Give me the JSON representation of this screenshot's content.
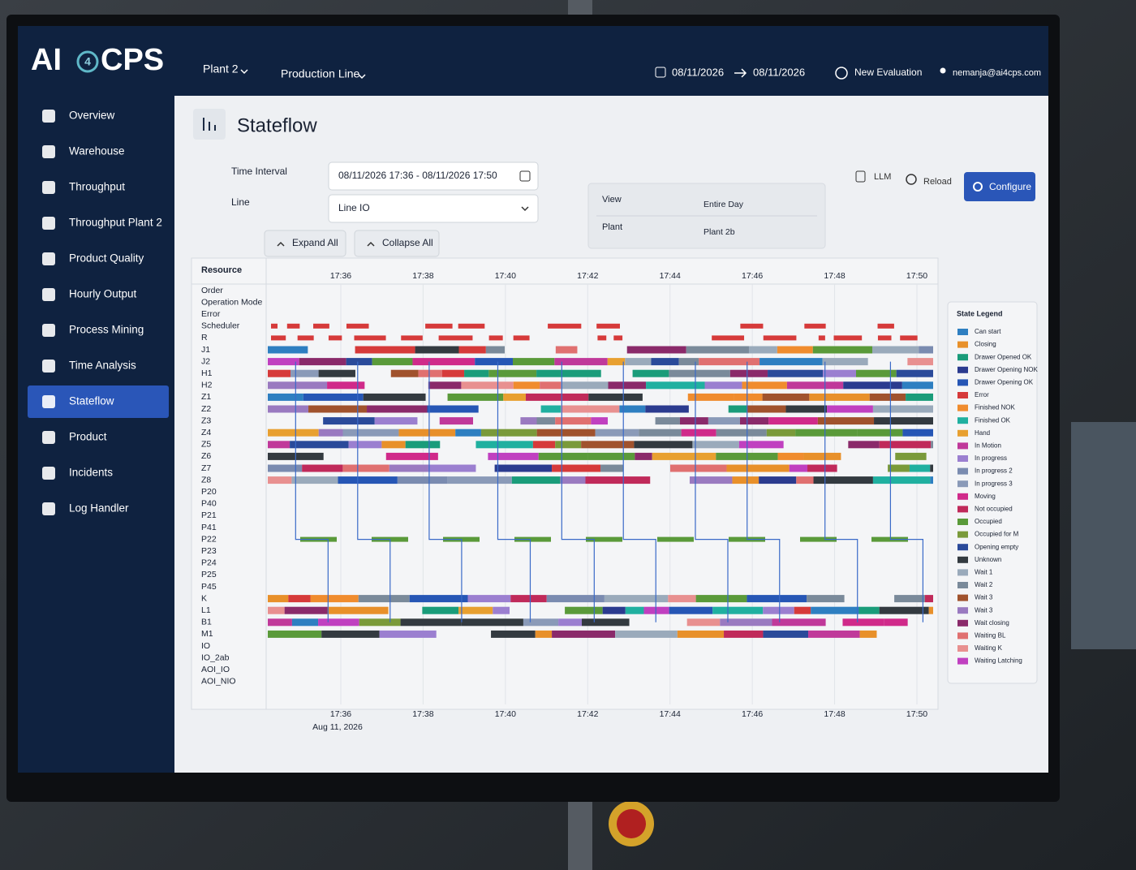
{
  "logo": {
    "left": "AI",
    "mid": "4",
    "right": "CPS"
  },
  "topbar": {
    "plant": "Plant 2",
    "line": "Production Line",
    "date_from": "08/11/2026",
    "date_to": "08/11/2026",
    "new_evaluation": "New Evaluation",
    "user": "nemanja@ai4cps.com"
  },
  "sidebar": {
    "active": 8,
    "items": [
      "Overview",
      "Warehouse",
      "Throughput",
      "Throughput Plant 2",
      "Product Quality",
      "Hourly Output",
      "Process Mining",
      "Time Analysis",
      "Stateflow",
      "Product",
      "Incidents",
      "Log Handler"
    ]
  },
  "page": {
    "title": "Stateflow",
    "time_interval_label": "Time Interval",
    "time_interval": "08/11/2026 17:36 - 08/11/2026 17:50",
    "line_label": "Line",
    "line": "Line IO",
    "expand_all": "Expand All",
    "collapse_all": "Collapse All",
    "view_label": "View",
    "view": "Entire Day",
    "plant_label": "Plant",
    "plant": "Plant 2b",
    "llm": "LLM",
    "reload": "Reload",
    "configure": "Configure"
  },
  "stateflow": {
    "resource_header": "Resource",
    "rows": [
      "Order",
      "Operation Mode",
      "Error",
      "Scheduler",
      "R",
      "J1",
      "J2",
      "H1",
      "H2",
      "Z1",
      "Z2",
      "Z3",
      "Z4",
      "Z5",
      "Z6",
      "Z7",
      "Z8",
      "P20",
      "P40",
      "P21",
      "P41",
      "P22",
      "P23",
      "P24",
      "P25",
      "P45",
      "K",
      "L1",
      "B1",
      "M1",
      "IO",
      "IO_2ab",
      "AOI_IO",
      "AOI_NIO"
    ],
    "time_ticks": [
      "17:36",
      "17:38",
      "17:40",
      "17:42",
      "17:44",
      "17:46",
      "17:48",
      "17:50"
    ],
    "date_label": "Aug 11, 2026",
    "legend_title": "State Legend",
    "legend": [
      {
        "name": "Can start",
        "color": "#2e7fc1"
      },
      {
        "name": "Closing",
        "color": "#e8902a"
      },
      {
        "name": "Drawer Opened OK",
        "color": "#1a9c7a"
      },
      {
        "name": "Drawer Opening NOK",
        "color": "#2b3b8f"
      },
      {
        "name": "Drawer Opening OK",
        "color": "#2656b5"
      },
      {
        "name": "Error",
        "color": "#d63a3a"
      },
      {
        "name": "Finished NOK",
        "color": "#f08c2e"
      },
      {
        "name": "Finished OK",
        "color": "#20b0a0"
      },
      {
        "name": "Hand",
        "color": "#e8a030"
      },
      {
        "name": "In Motion",
        "color": "#c0399a"
      },
      {
        "name": "In progress",
        "color": "#9b7fd0"
      },
      {
        "name": "In progress 2",
        "color": "#7a8bb0"
      },
      {
        "name": "In progress 3",
        "color": "#8a9ab8"
      },
      {
        "name": "Moving",
        "color": "#d02a8a"
      },
      {
        "name": "Not occupied",
        "color": "#c02a5a"
      },
      {
        "name": "Occupied",
        "color": "#5a9a3a"
      },
      {
        "name": "Occupied for M",
        "color": "#7a9a3a"
      },
      {
        "name": "Opening empty",
        "color": "#2a4a9a"
      },
      {
        "name": "Unknown",
        "color": "#333a40"
      },
      {
        "name": "Wait 1",
        "color": "#9aaabb"
      },
      {
        "name": "Wait 2",
        "color": "#7a8a9a"
      },
      {
        "name": "Wait 3",
        "color": "#a0522d"
      },
      {
        "name": "Wait 3",
        "color": "#9a7ac0"
      },
      {
        "name": "Wait closing",
        "color": "#8a2a6a"
      },
      {
        "name": "Waiting BL",
        "color": "#e07070"
      },
      {
        "name": "Waiting K",
        "color": "#e89090"
      },
      {
        "name": "Waiting Latching",
        "color": "#c040c0"
      }
    ]
  }
}
